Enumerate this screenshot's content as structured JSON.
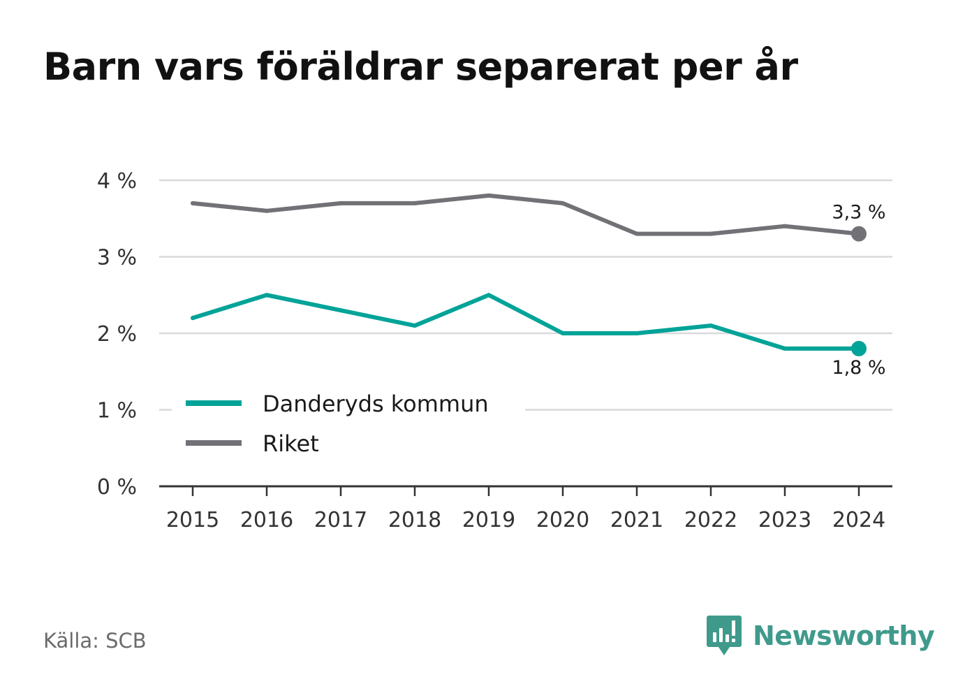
{
  "title": "Barn vars föräldrar separerat per år",
  "source": "Källa: SCB",
  "brand": {
    "name": "Newsworthy",
    "icon": "newsworthy-logo-icon",
    "color": "#3f9a8c"
  },
  "chart_data": {
    "type": "line",
    "title": "Barn vars föräldrar separerat per år",
    "xlabel": "",
    "ylabel": "",
    "x": [
      "2015",
      "2016",
      "2017",
      "2018",
      "2019",
      "2020",
      "2021",
      "2022",
      "2023",
      "2024"
    ],
    "ylim": [
      0,
      4
    ],
    "yticks": [
      0,
      1,
      2,
      3,
      4
    ],
    "ytick_labels": [
      "0 %",
      "1 %",
      "2 %",
      "3 %",
      "4 %"
    ],
    "grid": true,
    "legend_position": "bottom-left",
    "series": [
      {
        "name": "Danderyds kommun",
        "color": "#00a398",
        "values": [
          2.2,
          2.5,
          2.3,
          2.1,
          2.5,
          2.0,
          2.0,
          2.1,
          1.8,
          1.8
        ],
        "end_label": "1,8 %"
      },
      {
        "name": "Riket",
        "color": "#727176",
        "values": [
          3.7,
          3.6,
          3.7,
          3.7,
          3.8,
          3.7,
          3.3,
          3.3,
          3.4,
          3.3
        ],
        "end_label": "3,3 %"
      }
    ]
  }
}
